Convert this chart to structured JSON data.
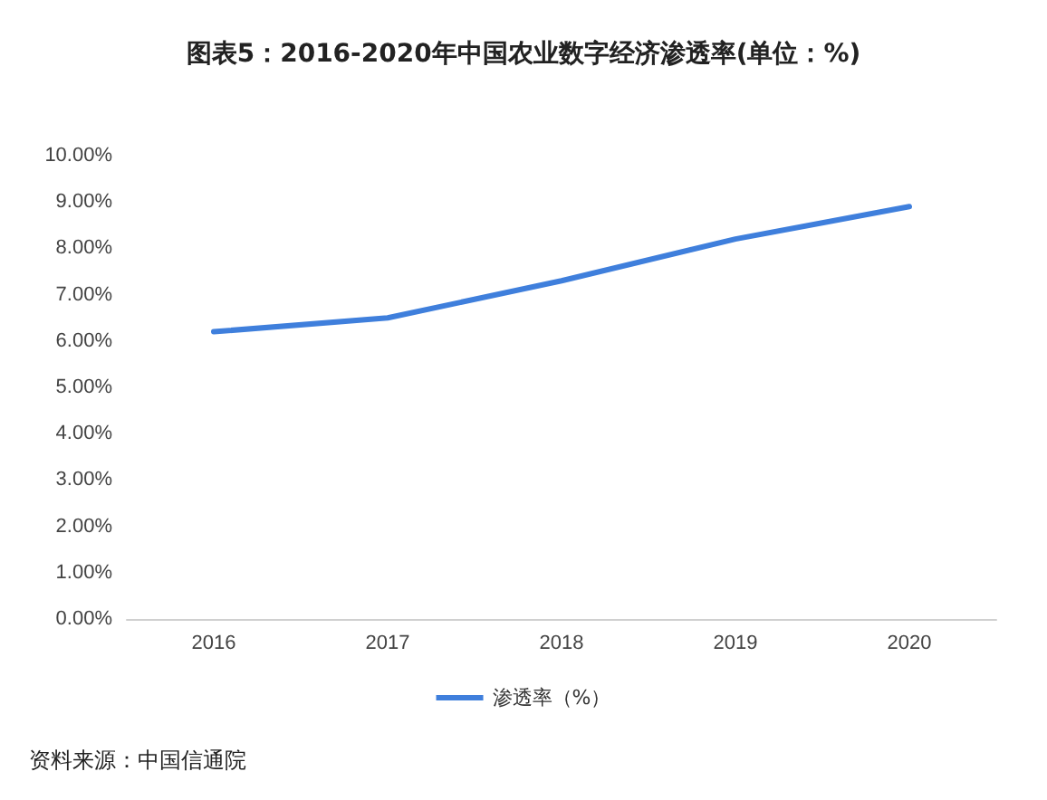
{
  "chart_data": {
    "type": "line",
    "title": "图表5：2016-2020年中国农业数字经济渗透率(单位：%)",
    "categories": [
      "2016",
      "2017",
      "2018",
      "2019",
      "2020"
    ],
    "series": [
      {
        "name": "渗透率（%）",
        "color": "#3f7fdc",
        "values": [
          6.2,
          6.5,
          7.3,
          8.2,
          8.9
        ]
      }
    ],
    "ylim": [
      0,
      10
    ],
    "yticks": [
      {
        "value": 0,
        "label": "0.00%"
      },
      {
        "value": 1,
        "label": "1.00%"
      },
      {
        "value": 2,
        "label": "2.00%"
      },
      {
        "value": 3,
        "label": "3.00%"
      },
      {
        "value": 4,
        "label": "4.00%"
      },
      {
        "value": 5,
        "label": "5.00%"
      },
      {
        "value": 6,
        "label": "6.00%"
      },
      {
        "value": 7,
        "label": "7.00%"
      },
      {
        "value": 8,
        "label": "8.00%"
      },
      {
        "value": 9,
        "label": "9.00%"
      },
      {
        "value": 10,
        "label": "10.00%"
      }
    ],
    "grid": false,
    "legend": "bottom",
    "marker": "none",
    "line_style": "solid",
    "annotations": [
      "资料来源：中国信通院"
    ]
  }
}
